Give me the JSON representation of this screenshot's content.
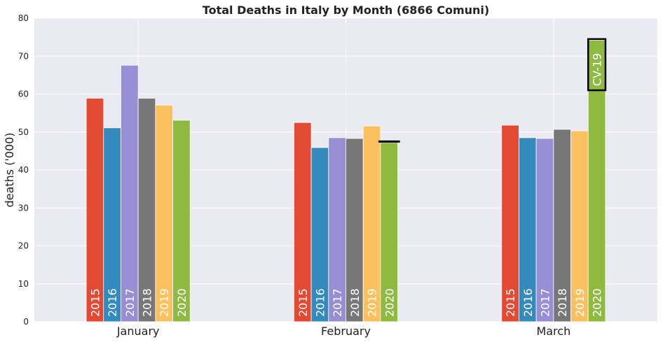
{
  "chart_data": {
    "type": "bar",
    "title": "Total Deaths in Italy by Month (6866 Comuni)",
    "xlabel": "",
    "ylabel": "deaths ('000)",
    "ylim": [
      0,
      80
    ],
    "yticks": [
      "0",
      "10",
      "20",
      "30",
      "40",
      "50",
      "60",
      "70",
      "80"
    ],
    "grid": true,
    "categories": [
      "January",
      "February",
      "March"
    ],
    "series": [
      {
        "name": "2015",
        "color": "#E24A33",
        "values": [
          58.9,
          52.5,
          51.8
        ]
      },
      {
        "name": "2016",
        "color": "#348ABD",
        "values": [
          51.1,
          45.9,
          48.5
        ]
      },
      {
        "name": "2017",
        "color": "#988ED5",
        "values": [
          67.6,
          48.5,
          48.3
        ]
      },
      {
        "name": "2018",
        "color": "#777777",
        "values": [
          58.9,
          48.3,
          50.7
        ]
      },
      {
        "name": "2019",
        "color": "#FBC15E",
        "values": [
          57.1,
          51.6,
          50.3
        ]
      },
      {
        "name": "2020",
        "color": "#8EBA42",
        "values": [
          53.1,
          47.2,
          74.2
        ]
      }
    ],
    "annotations": [
      {
        "text": "CV-19",
        "category": "March",
        "series": "2020",
        "y_from": 61,
        "y_to": 74.5
      },
      {
        "text": "",
        "category": "February",
        "series": "2020",
        "marker_value": 47.5
      }
    ]
  }
}
